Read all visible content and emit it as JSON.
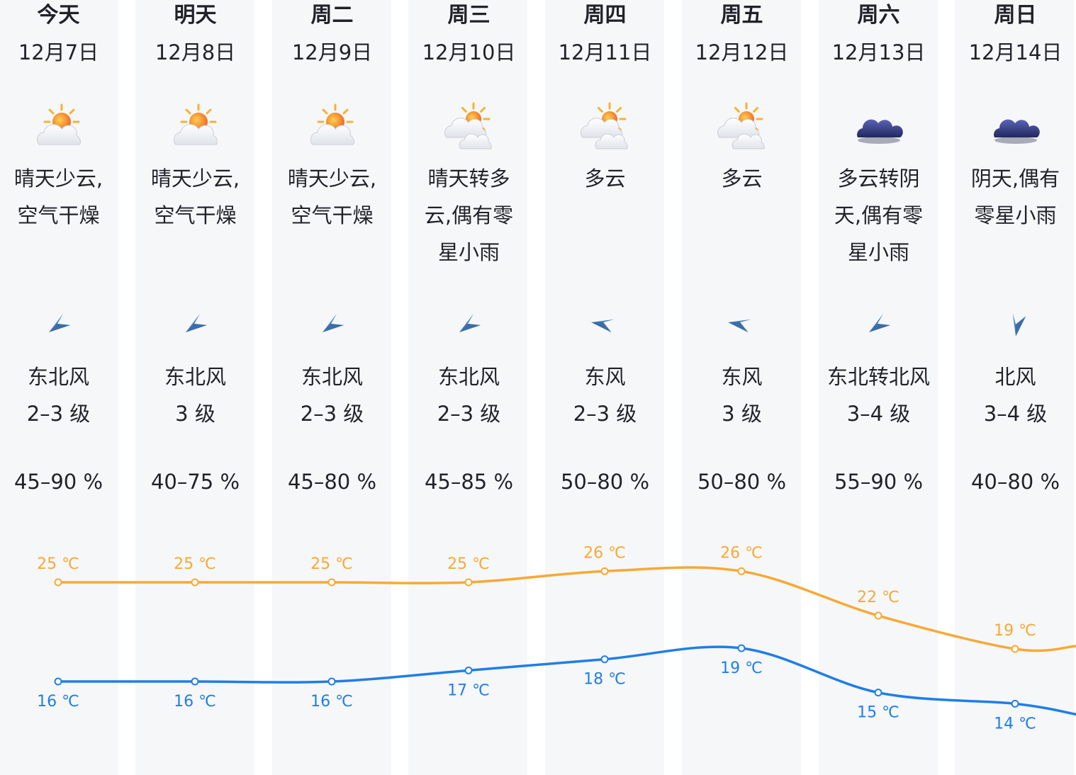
{
  "days": [
    {
      "day": "今天",
      "date": "12月7日",
      "icon": "sun-cloud-icon",
      "condition_lines": [
        "晴天少云,",
        "空气干燥"
      ],
      "wind_icon": "wind-arrow-northeast-icon",
      "wind_dir": "东北风",
      "wind_level": "2–3 级",
      "humidity": "45–90 %",
      "high": "25 ℃",
      "low": "16 ℃"
    },
    {
      "day": "明天",
      "date": "12月8日",
      "icon": "sun-cloud-icon",
      "condition_lines": [
        "晴天少云,",
        "空气干燥"
      ],
      "wind_icon": "wind-arrow-northeast-icon",
      "wind_dir": "东北风",
      "wind_level": "3 级",
      "humidity": "40–75 %",
      "high": "25 ℃",
      "low": "16 ℃"
    },
    {
      "day": "周二",
      "date": "12月9日",
      "icon": "sun-cloud-icon",
      "condition_lines": [
        "晴天少云,",
        "空气干燥"
      ],
      "wind_icon": "wind-arrow-northeast-icon",
      "wind_dir": "东北风",
      "wind_level": "2–3 级",
      "humidity": "45–80 %",
      "high": "25 ℃",
      "low": "16 ℃"
    },
    {
      "day": "周三",
      "date": "12月10日",
      "icon": "partly-cloudy-icon",
      "condition_lines": [
        "晴天转多",
        "云,偶有零",
        "星小雨"
      ],
      "wind_icon": "wind-arrow-northeast-icon",
      "wind_dir": "东北风",
      "wind_level": "2–3 级",
      "humidity": "45–85 %",
      "high": "25 ℃",
      "low": "17 ℃"
    },
    {
      "day": "周四",
      "date": "12月11日",
      "icon": "partly-cloudy-icon",
      "condition_lines": [
        "多云"
      ],
      "wind_icon": "wind-arrow-east-icon",
      "wind_dir": "东风",
      "wind_level": "2–3 级",
      "humidity": "50–80 %",
      "high": "26 ℃",
      "low": "18 ℃"
    },
    {
      "day": "周五",
      "date": "12月12日",
      "icon": "partly-cloudy-icon",
      "condition_lines": [
        "多云"
      ],
      "wind_icon": "wind-arrow-east-icon",
      "wind_dir": "东风",
      "wind_level": "3 级",
      "humidity": "50–80 %",
      "high": "26 ℃",
      "low": "19 ℃"
    },
    {
      "day": "周六",
      "date": "12月13日",
      "icon": "overcast-cloud-icon",
      "condition_lines": [
        "多云转阴",
        "天,偶有零",
        "星小雨"
      ],
      "wind_icon": "wind-arrow-northeast-icon",
      "wind_dir": "东北转北风",
      "wind_level": "3–4 级",
      "humidity": "55–90 %",
      "high": "22 ℃",
      "low": "15 ℃"
    },
    {
      "day": "周日",
      "date": "12月14日",
      "icon": "overcast-cloud-icon",
      "condition_lines": [
        "阴天,偶有",
        "零星小雨"
      ],
      "wind_icon": "wind-arrow-north-icon",
      "wind_dir": "北风",
      "wind_level": "3–4 级",
      "humidity": "40–80 %",
      "high": "19 ℃",
      "low": "14 ℃"
    }
  ],
  "chart_data": {
    "type": "line",
    "categories": [
      "12月7日",
      "12月8日",
      "12月9日",
      "12月10日",
      "12月11日",
      "12月12日",
      "12月13日",
      "12月14日"
    ],
    "unit": "℃",
    "series": [
      {
        "values": [
          25,
          25,
          25,
          25,
          26,
          26,
          22,
          19
        ],
        "color": "#f7a935"
      },
      {
        "values": [
          16,
          16,
          16,
          17,
          18,
          19,
          15,
          14
        ],
        "color": "#1f7ee8"
      }
    ]
  },
  "colors": {
    "column_bg": "#f6f7f9",
    "text": "#1f2329",
    "high_line": "#f7a935",
    "low_line": "#1f7ee8",
    "wind_arrow": "#4a7fb8"
  }
}
